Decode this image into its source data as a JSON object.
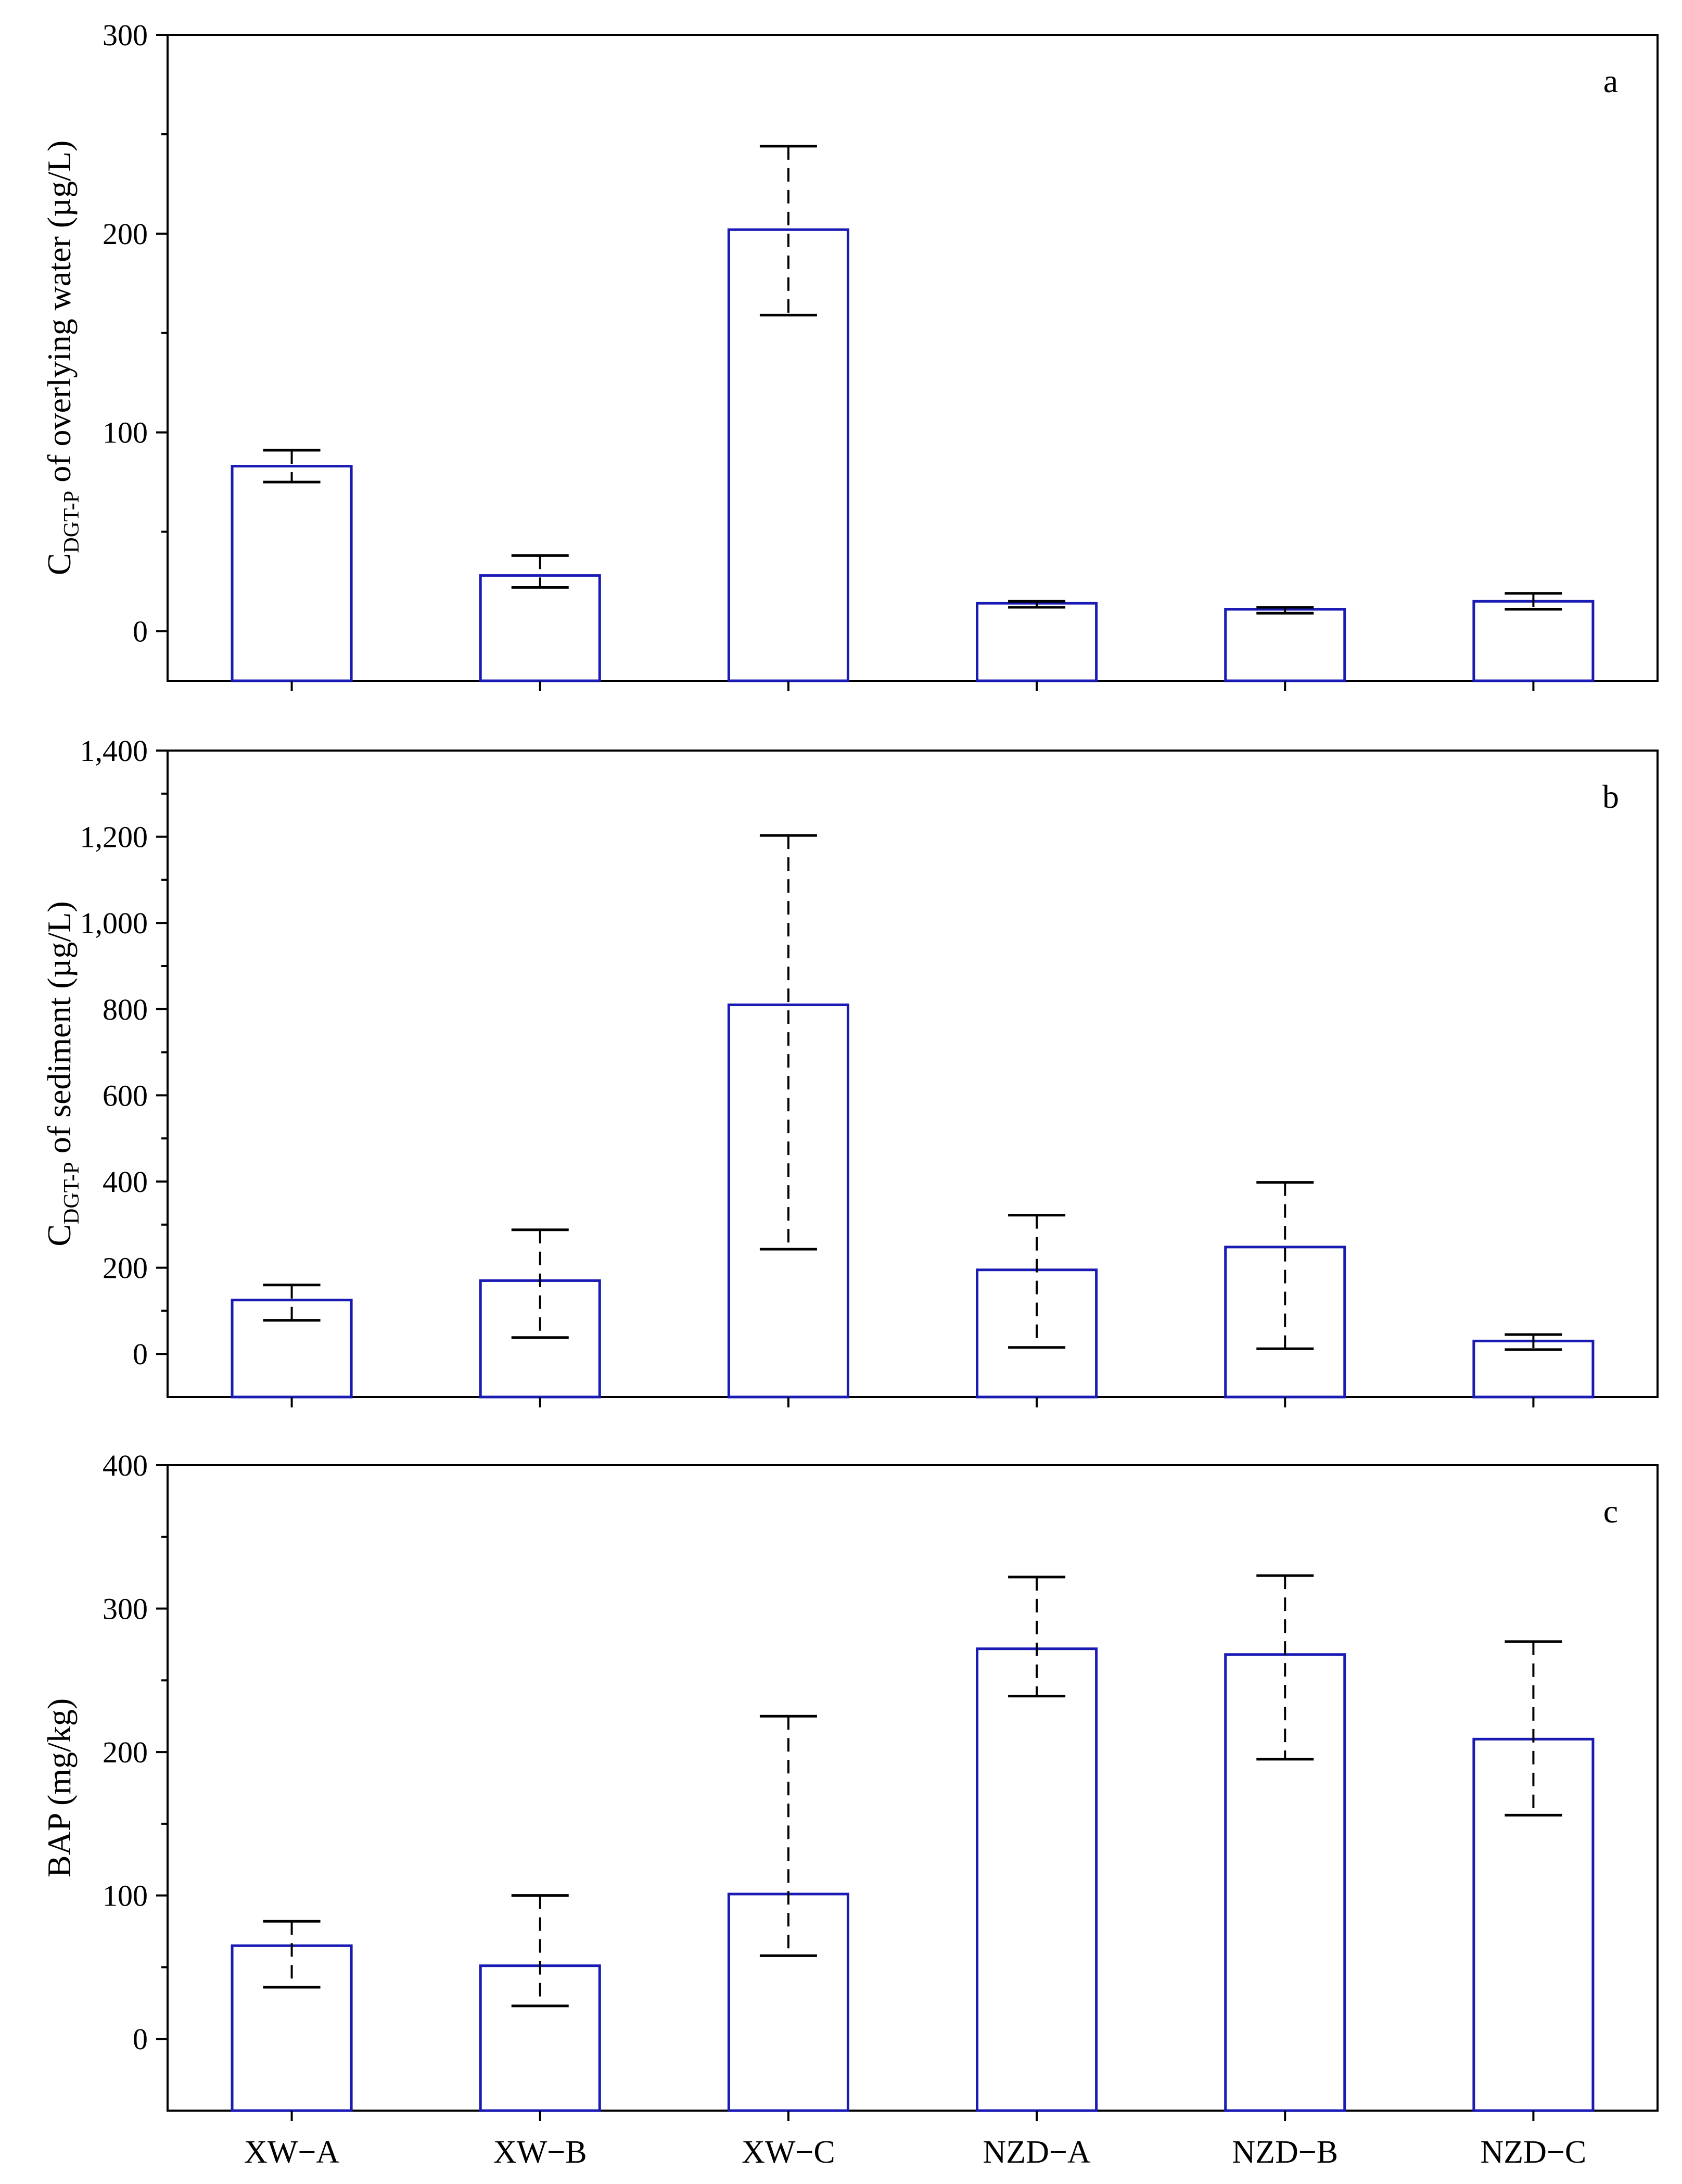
{
  "chart_data": [
    {
      "type": "bar",
      "panel_label": "a",
      "categories": [
        "XW−A",
        "XW−B",
        "XW−C",
        "NZD−A",
        "NZD−B",
        "NZD−C"
      ],
      "values": [
        83,
        28,
        202,
        14,
        11,
        15
      ],
      "error_low": [
        75,
        22,
        159,
        12,
        9,
        11
      ],
      "error_high": [
        91,
        38,
        244,
        15,
        12,
        19
      ],
      "ylabel": {
        "main": "C",
        "subscript": "DGT-P",
        "rest": " of overlying water (µg/L)"
      },
      "ylim": [
        -25,
        300
      ],
      "yticks": [
        0,
        100,
        200,
        300
      ],
      "ytick_labels": [
        "0",
        "100",
        "200",
        "300"
      ]
    },
    {
      "type": "bar",
      "panel_label": "b",
      "categories": [
        "XW−A",
        "XW−B",
        "XW−C",
        "NZD−A",
        "NZD−B",
        "NZD−C"
      ],
      "values": [
        125,
        170,
        810,
        195,
        248,
        30
      ],
      "error_low": [
        78,
        38,
        243,
        15,
        12,
        10
      ],
      "error_high": [
        160,
        288,
        1203,
        322,
        398,
        45
      ],
      "ylabel": {
        "main": "C",
        "subscript": "DGT-P",
        "rest": " of sediment (µg/L)"
      },
      "ylim": [
        -100,
        1400
      ],
      "yticks": [
        0,
        200,
        400,
        600,
        800,
        1000,
        1200,
        1400
      ],
      "ytick_labels": [
        "0",
        "200",
        "400",
        "600",
        "800",
        "1,000",
        "1,200",
        "1,400"
      ]
    },
    {
      "type": "bar",
      "panel_label": "c",
      "categories": [
        "XW−A",
        "XW−B",
        "XW−C",
        "NZD−A",
        "NZD−B",
        "NZD−C"
      ],
      "values": [
        65,
        51,
        101,
        272,
        268,
        209
      ],
      "error_low": [
        36,
        23,
        58,
        239,
        195,
        156
      ],
      "error_high": [
        82,
        100,
        225,
        322,
        323,
        277
      ],
      "ylabel": {
        "main": "BAP (mg/kg)",
        "subscript": "",
        "rest": ""
      },
      "ylim": [
        -50,
        400
      ],
      "yticks": [
        0,
        100,
        200,
        300,
        400
      ],
      "ytick_labels": [
        "0",
        "100",
        "200",
        "300",
        "400"
      ]
    }
  ],
  "colors": {
    "bar_edge": "#1a1ab4",
    "axis": "#000000",
    "error_bar": "#000000"
  }
}
